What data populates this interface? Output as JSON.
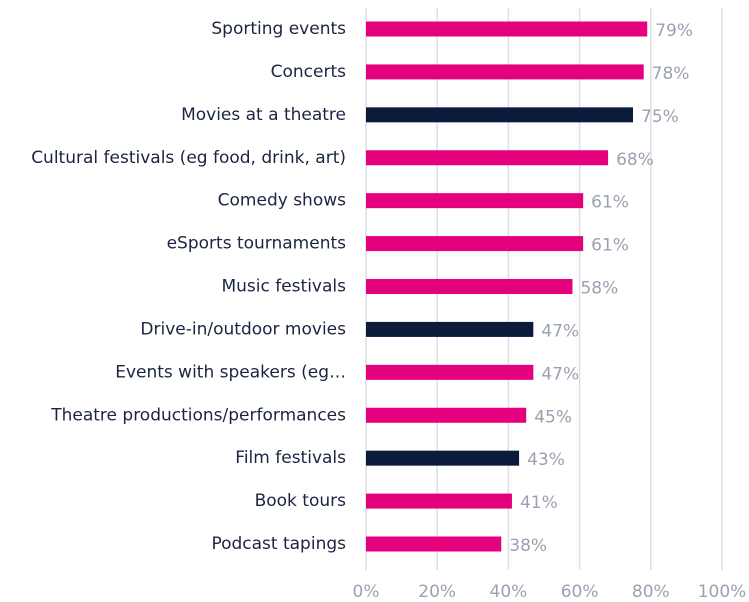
{
  "chart_data": {
    "type": "bar",
    "orientation": "horizontal",
    "categories": [
      "Sporting events",
      "Concerts",
      "Movies at a theatre",
      "Cultural festivals (eg food, drink, art)",
      "Comedy shows",
      "eSports tournaments",
      "Music festivals",
      "Drive-in/outdoor movies",
      "Events with speakers (eg…",
      "Theatre productions/performances",
      "Film festivals",
      "Book tours",
      "Podcast tapings"
    ],
    "values": [
      79,
      78,
      75,
      68,
      61,
      61,
      58,
      47,
      47,
      45,
      43,
      41,
      38
    ],
    "value_labels": [
      "79%",
      "78%",
      "75%",
      "68%",
      "61%",
      "61%",
      "58%",
      "47%",
      "47%",
      "45%",
      "43%",
      "41%",
      "38%"
    ],
    "colors": [
      "#e5007d",
      "#e5007d",
      "#0c1a3c",
      "#e5007d",
      "#e5007d",
      "#e5007d",
      "#e5007d",
      "#0c1a3c",
      "#e5007d",
      "#e5007d",
      "#0c1a3c",
      "#e5007d",
      "#e5007d"
    ],
    "xlim": [
      0,
      100
    ],
    "xticks": [
      {
        "value": 0,
        "label": "0%"
      },
      {
        "value": 20,
        "label": "20%"
      },
      {
        "value": 40,
        "label": "40%"
      },
      {
        "value": 60,
        "label": "60%"
      },
      {
        "value": 80,
        "label": "80%"
      },
      {
        "value": 100,
        "label": "100%"
      }
    ],
    "grid": true
  }
}
